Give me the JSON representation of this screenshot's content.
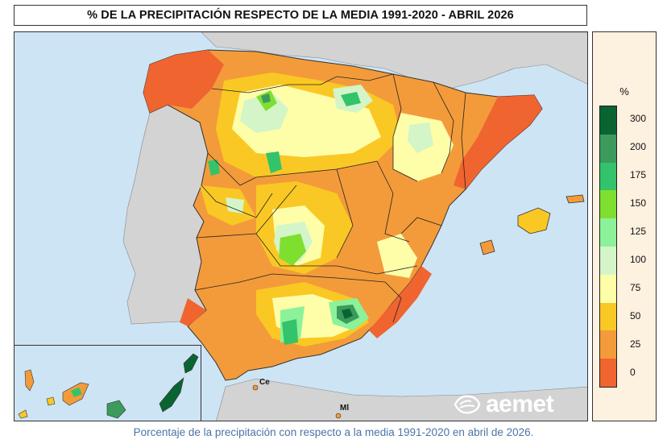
{
  "title": "% DE LA PRECIPITACIÓN RESPECTO DE LA MEDIA 1991-2020 - ABRIL 2026",
  "legend": {
    "unit": "%",
    "labels": [
      "300",
      "200",
      "175",
      "150",
      "125",
      "100",
      "75",
      "50",
      "25",
      "0"
    ],
    "colors": [
      "#0a6432",
      "#3c9a5c",
      "#33c36b",
      "#7fdf2f",
      "#8cf29a",
      "#d3f5c8",
      "#fefea8",
      "#fac824",
      "#f39b3a",
      "#f06430"
    ]
  },
  "cities": {
    "ceuta": "Ce",
    "melilla": "Ml"
  },
  "logo": {
    "text": "aemet"
  },
  "caption": "Porcentaje de la precipitación con respecto a la media 1991-2020 en abril de 2026."
}
